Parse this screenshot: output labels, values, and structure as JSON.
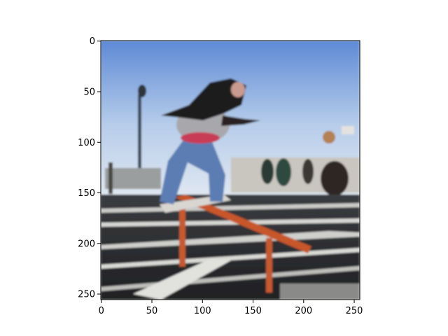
{
  "figure": {
    "type": "image",
    "description_visible": "Blurry reconstructed photo of a skateboarder grinding a handrail, shown on matplotlib-style axes",
    "image_size": [
      256,
      256
    ],
    "x_ticks": [
      "0",
      "50",
      "100",
      "150",
      "200",
      "250"
    ],
    "y_ticks": [
      "0",
      "50",
      "100",
      "150",
      "200",
      "250"
    ],
    "x_tick_values": [
      0,
      50,
      100,
      150,
      200,
      250
    ],
    "y_tick_values": [
      0,
      50,
      100,
      150,
      200,
      250
    ],
    "colors": {
      "sky_top": "#5e8ad6",
      "sky_bottom": "#d8e4f3",
      "stairs": "#2f3134",
      "railing": "#c7562a",
      "jeans": "#5b7db3",
      "hair": "#1c1a1a"
    }
  }
}
